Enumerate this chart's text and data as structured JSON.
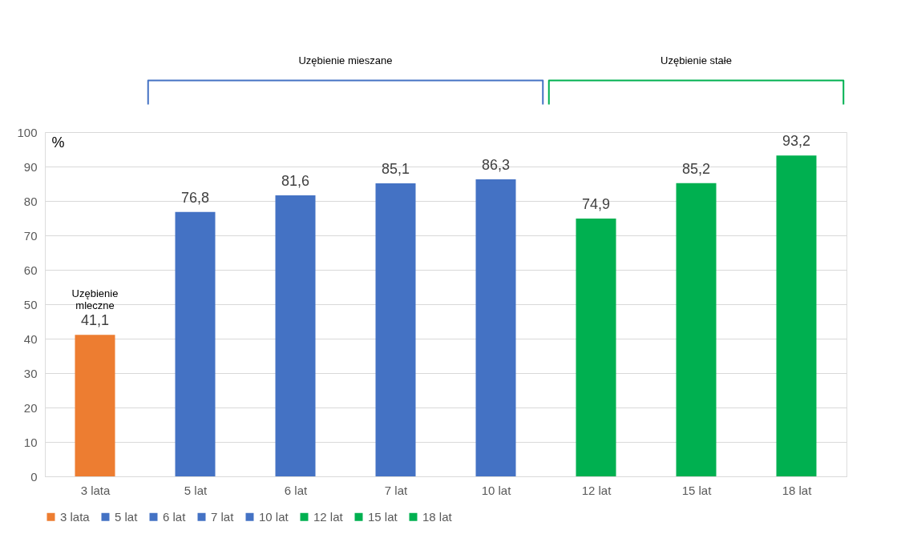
{
  "chart_data": {
    "type": "bar",
    "ylabel": "%",
    "categories": [
      "3 lata",
      "5 lat",
      "6 lat",
      "7 lat",
      "10 lat",
      "12 lat",
      "15 lat",
      "18 lat"
    ],
    "series": [
      {
        "name": "3 lata",
        "color": "#ed7d31",
        "values": [
          41.1,
          null,
          null,
          null,
          null,
          null,
          null,
          null
        ],
        "value_labels": [
          "41,1",
          null,
          null,
          null,
          null,
          null,
          null,
          null
        ]
      },
      {
        "name": "5 lat",
        "color": "#4472c4",
        "values": [
          null,
          76.8,
          null,
          null,
          null,
          null,
          null,
          null
        ],
        "value_labels": [
          null,
          "76,8",
          null,
          null,
          null,
          null,
          null,
          null
        ]
      },
      {
        "name": "6 lat",
        "color": "#4472c4",
        "values": [
          null,
          null,
          81.6,
          null,
          null,
          null,
          null,
          null
        ],
        "value_labels": [
          null,
          null,
          "81,6",
          null,
          null,
          null,
          null,
          null
        ]
      },
      {
        "name": "7 lat",
        "color": "#4472c4",
        "values": [
          null,
          null,
          null,
          85.1,
          null,
          null,
          null,
          null
        ],
        "value_labels": [
          null,
          null,
          null,
          "85,1",
          null,
          null,
          null,
          null
        ]
      },
      {
        "name": "10 lat",
        "color": "#4472c4",
        "values": [
          null,
          null,
          null,
          null,
          86.3,
          null,
          null,
          null
        ],
        "value_labels": [
          null,
          null,
          null,
          null,
          "86,3",
          null,
          null,
          null
        ]
      },
      {
        "name": "12 lat",
        "color": "#00b050",
        "values": [
          null,
          null,
          null,
          null,
          null,
          74.9,
          null,
          null
        ],
        "value_labels": [
          null,
          null,
          null,
          null,
          null,
          "74,9",
          null,
          null
        ]
      },
      {
        "name": "15 lat",
        "color": "#00b050",
        "values": [
          null,
          null,
          null,
          null,
          null,
          null,
          85.2,
          null
        ],
        "value_labels": [
          null,
          null,
          null,
          null,
          null,
          null,
          "85,2",
          null
        ]
      },
      {
        "name": "18 lat",
        "color": "#00b050",
        "values": [
          null,
          null,
          null,
          null,
          null,
          null,
          null,
          93.2
        ],
        "value_labels": [
          null,
          null,
          null,
          null,
          null,
          null,
          null,
          "93,2"
        ]
      }
    ],
    "ylim": [
      0,
      100
    ],
    "yticks": [
      0,
      10,
      20,
      30,
      40,
      50,
      60,
      70,
      80,
      90,
      100
    ],
    "grid": "y",
    "legend": "bottom",
    "annotations": [
      "Uzębienie mleczne",
      "Uzębienie mieszane",
      "Uzębienie stałe"
    ]
  }
}
